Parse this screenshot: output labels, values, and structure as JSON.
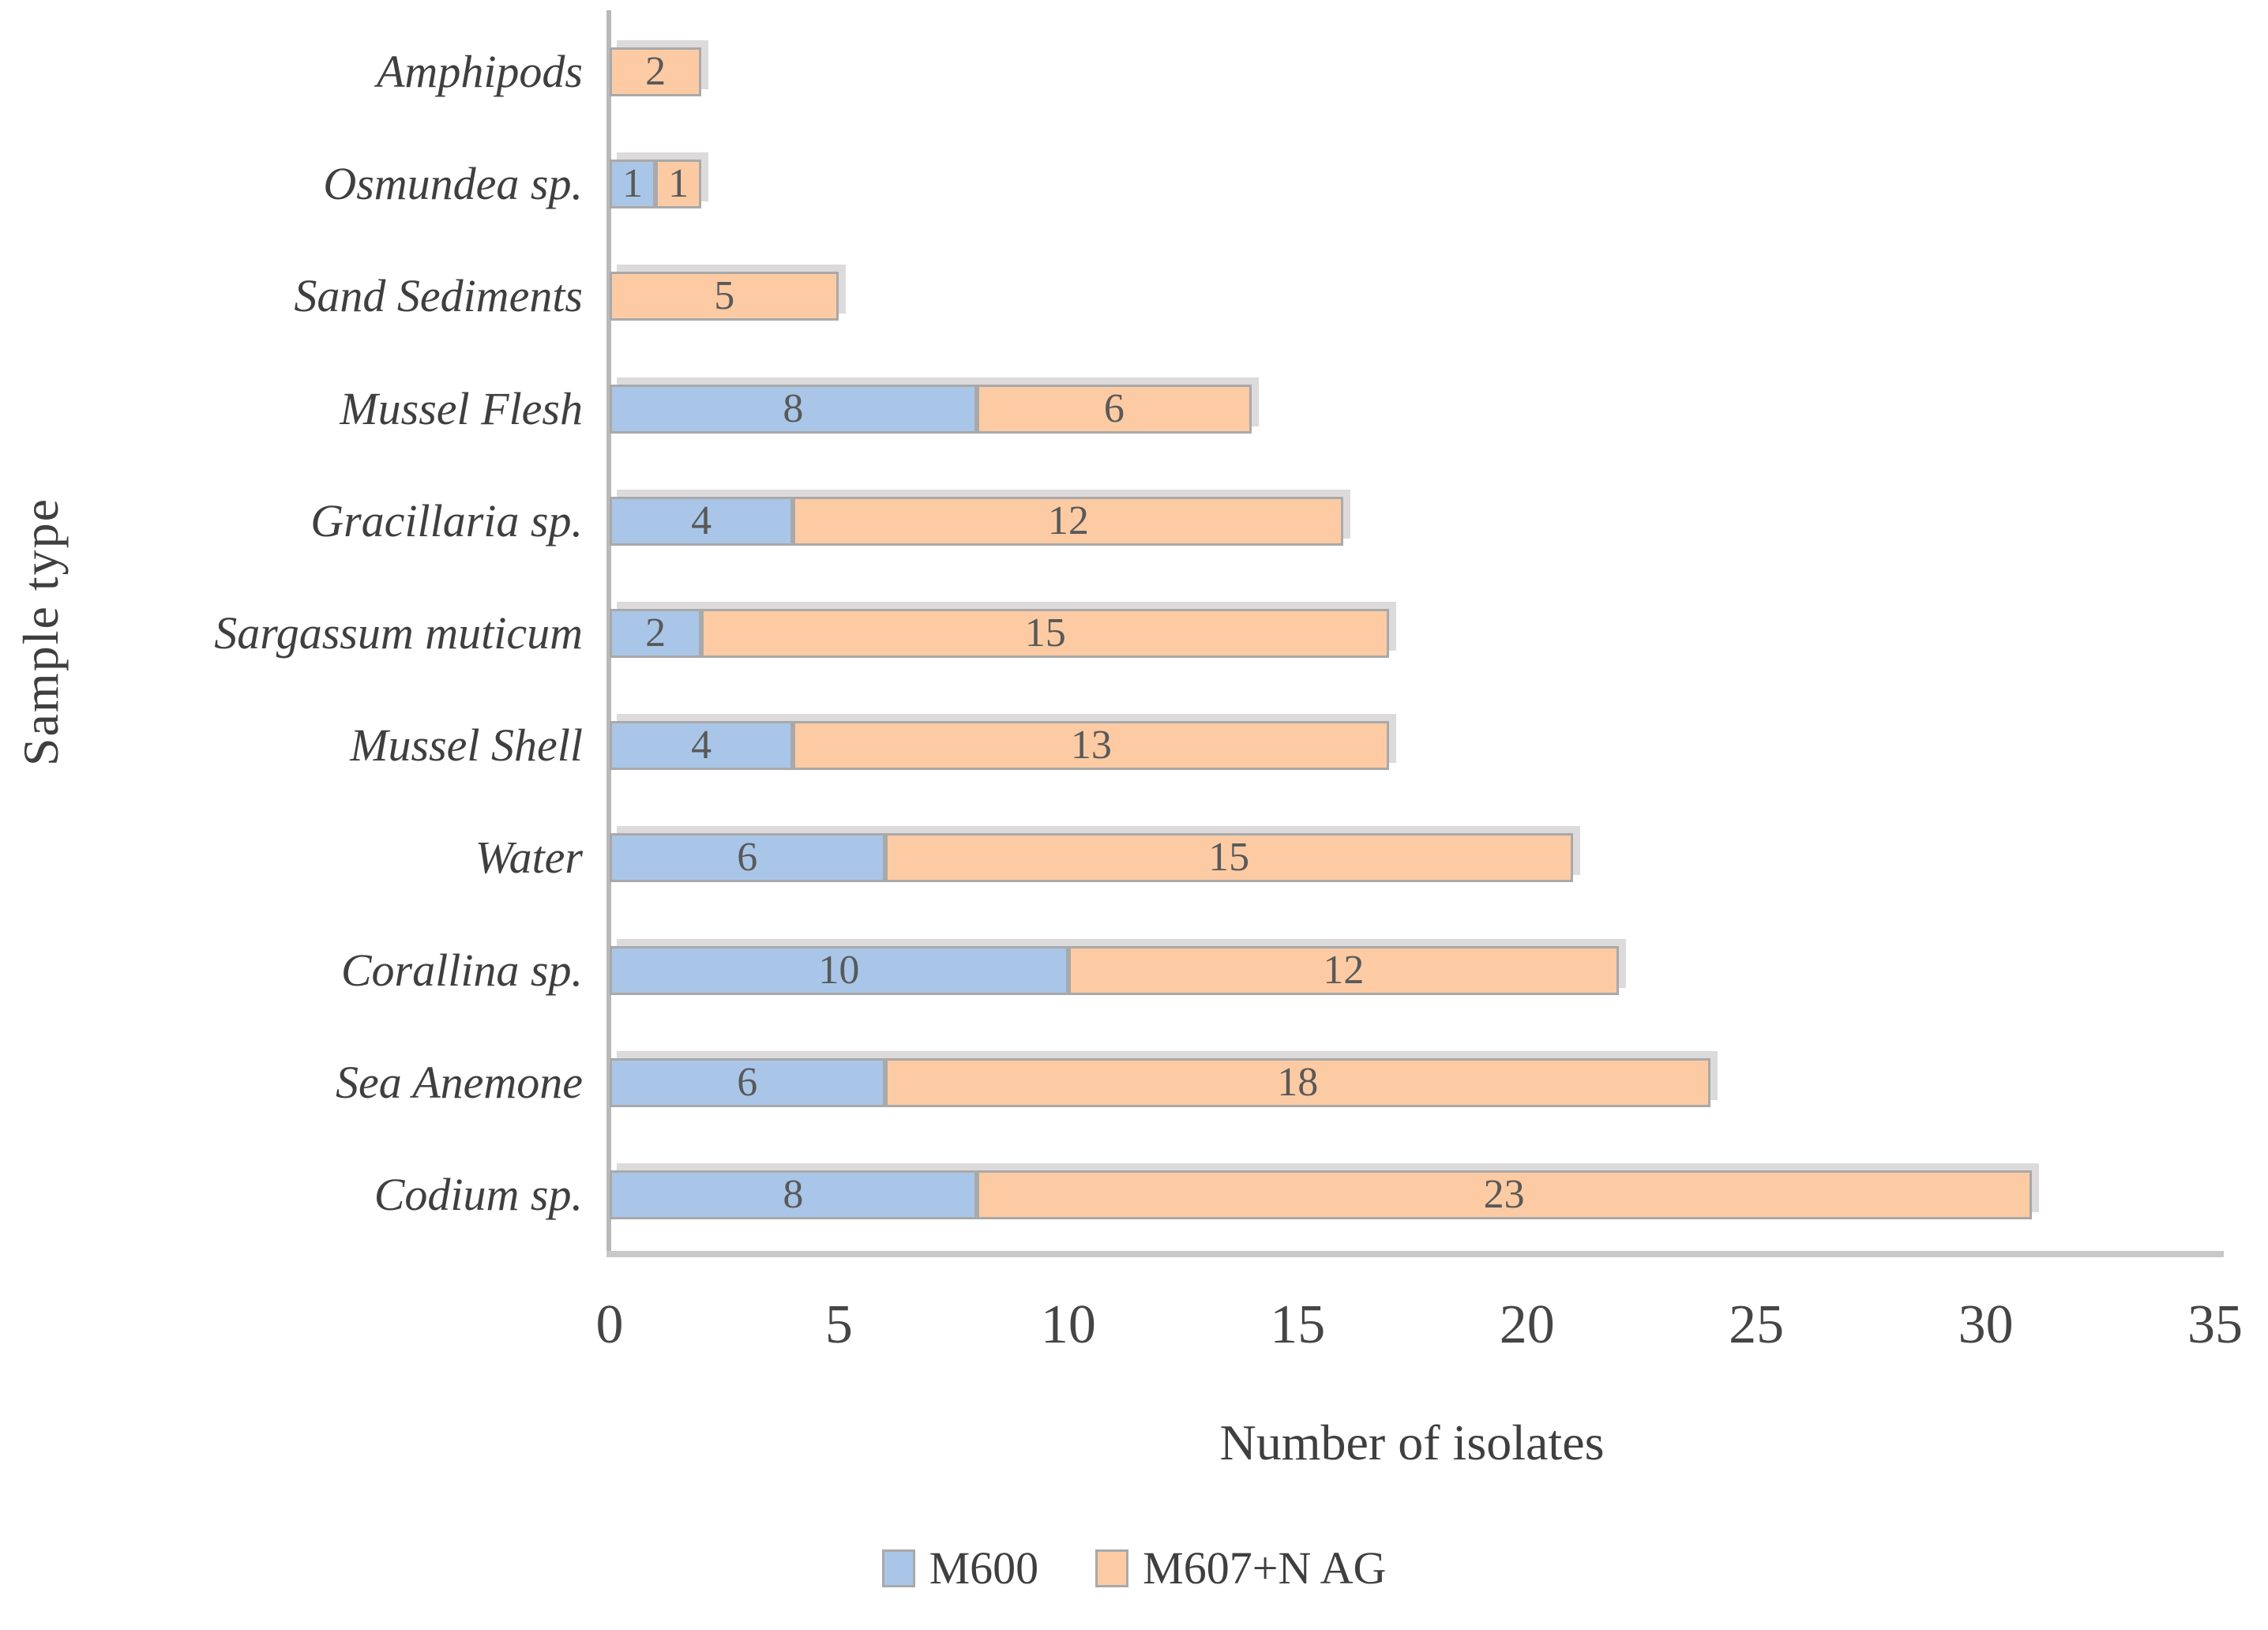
{
  "chart_data": {
    "type": "bar",
    "orientation": "horizontal",
    "stacked": true,
    "title": "",
    "xlabel": "Number of isolates",
    "ylabel": "Sample type",
    "xlim": [
      0,
      35
    ],
    "xticks": [
      0,
      5,
      10,
      15,
      20,
      25,
      30,
      35
    ],
    "grid": false,
    "legend_position": "bottom",
    "categories": [
      "Amphipods",
      "Osmundea sp.",
      "Sand Sediments",
      "Mussel Flesh",
      "Gracillaria sp.",
      "Sargassum muticum",
      "Mussel Shell",
      "Water",
      "Corallina sp.",
      "Sea Anemone",
      "Codium sp."
    ],
    "series": [
      {
        "name": "M600",
        "color": "#a9c6e8",
        "values": [
          0,
          1,
          0,
          8,
          4,
          2,
          4,
          6,
          10,
          6,
          8
        ]
      },
      {
        "name": "M607+N AG",
        "color": "#fccba3",
        "values": [
          2,
          1,
          5,
          6,
          12,
          15,
          13,
          15,
          12,
          18,
          23
        ]
      }
    ],
    "value_label_color": "#595959",
    "axis_line_color": "#bdbdbd",
    "bar_border_color": "#a9a9a9"
  }
}
